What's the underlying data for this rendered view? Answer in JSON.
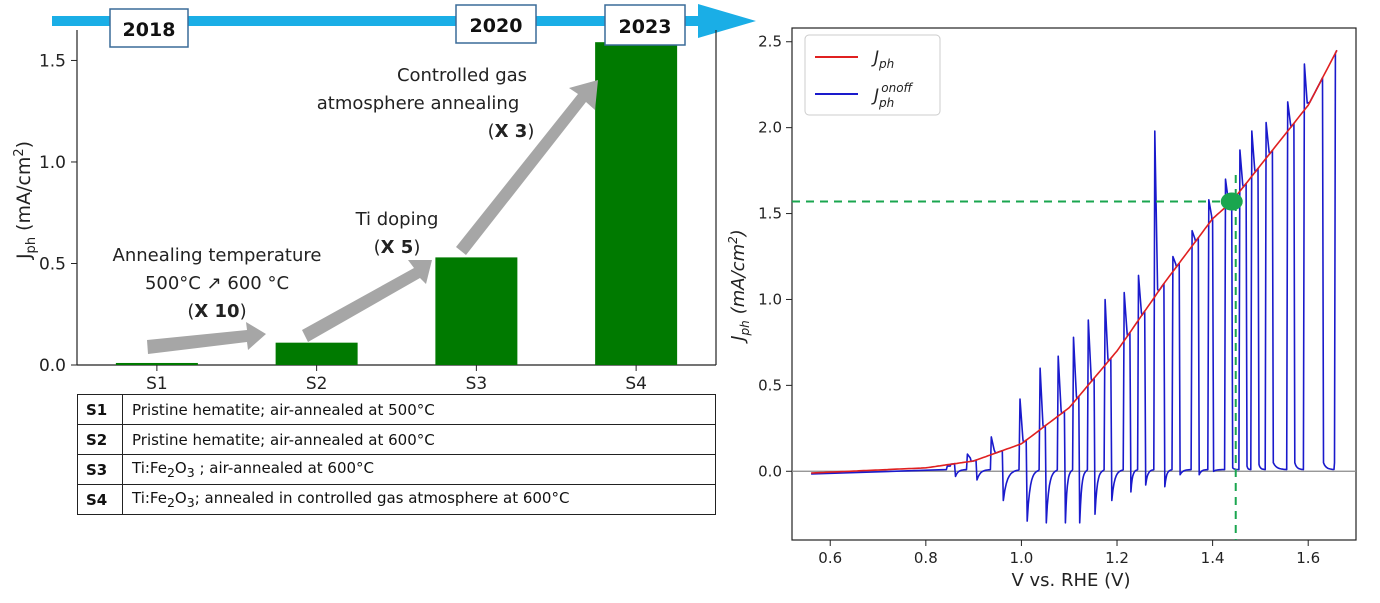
{
  "timeline": {
    "years": [
      "2018",
      "2020",
      "2023"
    ],
    "color": "#1aaee6"
  },
  "chart_data": [
    {
      "type": "bar",
      "categories": [
        "S1",
        "S2",
        "S3",
        "S4"
      ],
      "values": [
        0.01,
        0.11,
        0.53,
        1.59
      ],
      "bar_color": "#007a00",
      "ylabel_main": "J",
      "ylabel_sub": "ph",
      "ylabel_unit": "(mA/cm",
      "ylabel_sup": "2",
      "ylabel_close": ")",
      "ylim": [
        0,
        1.65
      ],
      "yticks": [
        "0.0",
        "0.5",
        "1.0",
        "1.5"
      ],
      "annotations": [
        {
          "lines": [
            "Annealing temperature",
            "500°C ↗ 600 °C"
          ],
          "factor": "X 10"
        },
        {
          "lines": [
            "Ti doping"
          ],
          "factor": "X 5"
        },
        {
          "lines": [
            "Controlled gas",
            "atmosphere annealing"
          ],
          "factor": "X 3"
        }
      ]
    },
    {
      "type": "line",
      "xlabel": "V vs. RHE (V)",
      "ylabel": "J_ph (mA/cm^2)",
      "xlim": [
        0.52,
        1.7
      ],
      "ylim": [
        -0.4,
        2.58
      ],
      "xticks": [
        "0.6",
        "0.8",
        "1.0",
        "1.2",
        "1.4",
        "1.6"
      ],
      "yticks": [
        "0.0",
        "0.5",
        "1.0",
        "1.5",
        "2.0",
        "2.5"
      ],
      "legend": {
        "placement": "top-left",
        "jph": "J",
        "jph_sub": "ph",
        "onoff": "J",
        "onoff_sub": "ph",
        "onoff_sup": "onoff"
      },
      "series": [
        {
          "name": "J_ph",
          "color": "#e02020",
          "x": [
            0.56,
            0.8,
            0.9,
            1.0,
            1.1,
            1.2,
            1.3,
            1.4,
            1.44,
            1.5,
            1.6,
            1.66
          ],
          "y": [
            -0.01,
            0.02,
            0.06,
            0.16,
            0.37,
            0.7,
            1.1,
            1.47,
            1.57,
            1.78,
            2.13,
            2.45
          ]
        },
        {
          "name": "J_ph^onoff",
          "color": "#1a1acc",
          "x_on": [
            0.843,
            0.885,
            0.935,
            0.995,
            1.037,
            1.075,
            1.107,
            1.138,
            1.173,
            1.213,
            1.243,
            1.277,
            1.315,
            1.355,
            1.39,
            1.425,
            1.455,
            1.48,
            1.51,
            1.555,
            1.59
          ],
          "x_off": [
            0.86,
            0.905,
            0.96,
            1.01,
            1.05,
            1.09,
            1.12,
            1.152,
            1.187,
            1.227,
            1.258,
            1.298,
            1.33,
            1.37,
            1.4,
            1.44,
            1.47,
            1.495,
            1.525,
            1.57,
            1.63
          ],
          "spike_peak": [
            0.03,
            0.1,
            0.2,
            0.42,
            0.6,
            0.67,
            0.78,
            0.88,
            1.0,
            1.04,
            1.14,
            1.98,
            1.25,
            1.4,
            1.58,
            1.7,
            1.87,
            1.98,
            2.03,
            2.15,
            2.37
          ],
          "dip_min": [
            -0.03,
            -0.05,
            -0.17,
            -0.29,
            -0.3,
            -0.3,
            -0.3,
            -0.25,
            -0.17,
            -0.12,
            -0.08,
            -0.09,
            -0.02,
            -0.02,
            0.0,
            0.02,
            0.03,
            0.04,
            0.05,
            0.05,
            0.05
          ]
        }
      ],
      "marker": {
        "x": 1.44,
        "y": 1.57,
        "color": "#1aa64f"
      }
    }
  ],
  "table": {
    "rows": [
      {
        "code": "S1",
        "desc": "Pristine hematite; air-annealed at 500°C"
      },
      {
        "code": "S2",
        "desc": "Pristine hematite; air-annealed at 600°C"
      },
      {
        "code": "S3",
        "pre": "Ti:Fe",
        "sub": "2",
        "post": "O",
        "sub2": "3",
        "tail": " ; air-annealed at 600°C"
      },
      {
        "code": "S4",
        "pre": "Ti:Fe",
        "sub": "2",
        "post": "O",
        "sub2": "3",
        "tail": "; annealed in controlled gas atmosphere at 600°C"
      }
    ]
  }
}
